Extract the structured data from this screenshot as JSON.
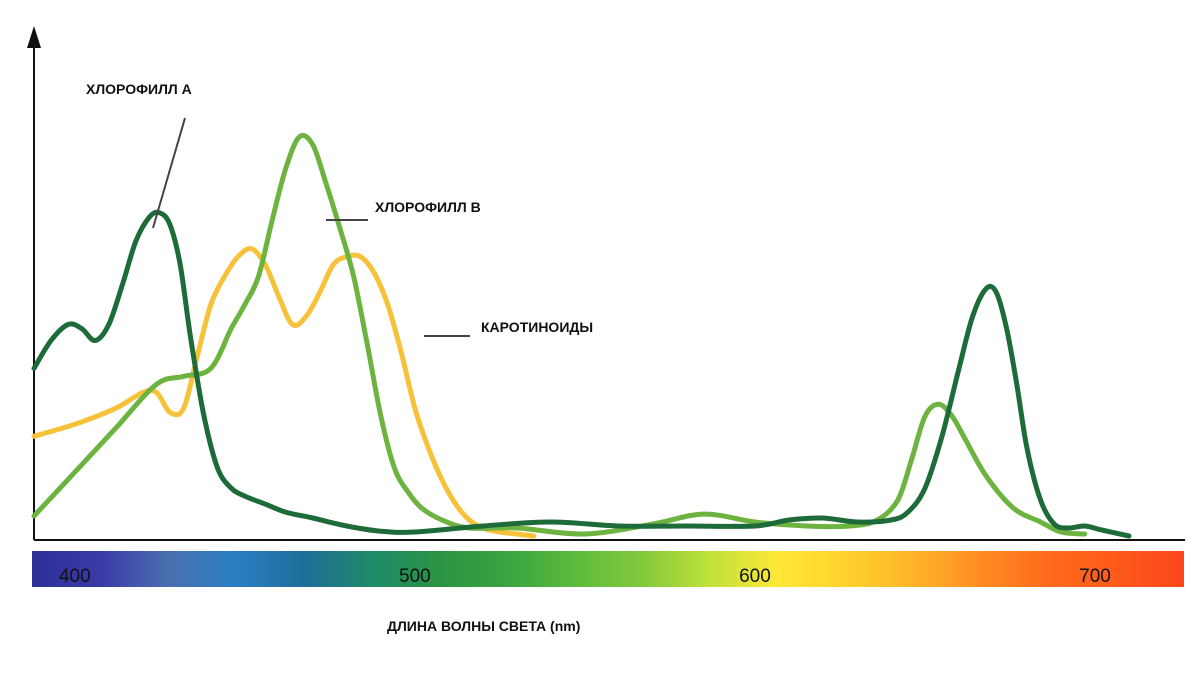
{
  "chart_data": {
    "type": "line",
    "xlabel": "ДЛИНА ВОЛНЫ СВЕТА (nm)",
    "ylabel": "",
    "x_ticks": [
      400,
      500,
      600,
      700
    ],
    "xlim": [
      388,
      715
    ],
    "ylim": [
      0,
      1
    ],
    "grid": false,
    "legend": "inline labels",
    "spectrum_bar": true,
    "series": [
      {
        "name": "ХЛОРОФИЛЛ А",
        "color": "#1e6b3a",
        "x": [
          388,
          393,
          398,
          402,
          406,
          410,
          414,
          418,
          422,
          425,
          428,
          431,
          434,
          438,
          442,
          446,
          450,
          456,
          462,
          470,
          480,
          490,
          500,
          520,
          540,
          560,
          580,
          600,
          610,
          620,
          630,
          640,
          645,
          650,
          655,
          660,
          664,
          668,
          671,
          674,
          677,
          680,
          684,
          688,
          692,
          697,
          702,
          710
        ],
        "y": [
          0.42,
          0.49,
          0.53,
          0.52,
          0.49,
          0.53,
          0.63,
          0.74,
          0.8,
          0.81,
          0.78,
          0.68,
          0.5,
          0.3,
          0.17,
          0.12,
          0.1,
          0.08,
          0.06,
          0.045,
          0.025,
          0.012,
          0.01,
          0.025,
          0.035,
          0.025,
          0.025,
          0.025,
          0.04,
          0.045,
          0.035,
          0.04,
          0.06,
          0.12,
          0.25,
          0.42,
          0.55,
          0.62,
          0.61,
          0.52,
          0.38,
          0.22,
          0.09,
          0.03,
          0.02,
          0.025,
          0.015,
          0.0
        ]
      },
      {
        "name": "ХЛОРОФИЛЛ В",
        "color": "#6db33f",
        "x": [
          388,
          400,
          412,
          424,
          432,
          440,
          446,
          450,
          454,
          458,
          462,
          466,
          470,
          474,
          478,
          482,
          486,
          490,
          494,
          498,
          502,
          508,
          516,
          530,
          550,
          570,
          585,
          600,
          615,
          628,
          636,
          642,
          646,
          650,
          654,
          658,
          662,
          668,
          676,
          684,
          690,
          697
        ],
        "y": [
          0.05,
          0.16,
          0.27,
          0.38,
          0.4,
          0.42,
          0.52,
          0.58,
          0.65,
          0.79,
          0.92,
          1.0,
          0.98,
          0.88,
          0.77,
          0.65,
          0.48,
          0.3,
          0.17,
          0.11,
          0.07,
          0.04,
          0.02,
          0.02,
          0.005,
          0.03,
          0.055,
          0.035,
          0.025,
          0.025,
          0.04,
          0.09,
          0.19,
          0.3,
          0.33,
          0.3,
          0.24,
          0.15,
          0.07,
          0.035,
          0.01,
          0.005
        ]
      },
      {
        "name": "КАРОТИНОИДЫ",
        "color": "#f7c13a",
        "x": [
          388,
          400,
          412,
          420,
          424,
          428,
          432,
          436,
          440,
          444,
          448,
          452,
          456,
          460,
          464,
          468,
          472,
          476,
          480,
          484,
          488,
          492,
          496,
          500,
          504,
          508,
          512,
          516,
          520,
          525,
          530,
          535
        ],
        "y": [
          0.25,
          0.28,
          0.32,
          0.36,
          0.36,
          0.31,
          0.32,
          0.45,
          0.58,
          0.65,
          0.7,
          0.72,
          0.68,
          0.6,
          0.53,
          0.55,
          0.61,
          0.68,
          0.7,
          0.7,
          0.66,
          0.58,
          0.46,
          0.32,
          0.22,
          0.14,
          0.08,
          0.04,
          0.02,
          0.01,
          0.005,
          0.0
        ]
      }
    ],
    "annotations": [
      {
        "text": "ХЛОРОФИЛЛ А",
        "series": 0
      },
      {
        "text": "ХЛОРОФИЛЛ В",
        "series": 1
      },
      {
        "text": "КАРОТИНОИДЫ",
        "series": 2
      }
    ],
    "spectrum_colors": [
      "#2f2f9a",
      "#3a3aa6",
      "#4a6fb0",
      "#2a7fc4",
      "#1d6e9a",
      "#1e8a6a",
      "#2a9444",
      "#39a340",
      "#5cbb3d",
      "#83c83b",
      "#bfe13b",
      "#ffe836",
      "#ffd22e",
      "#ffb428",
      "#ff8c22",
      "#ff6a1c",
      "#ff5a1a",
      "#fa4619"
    ]
  }
}
